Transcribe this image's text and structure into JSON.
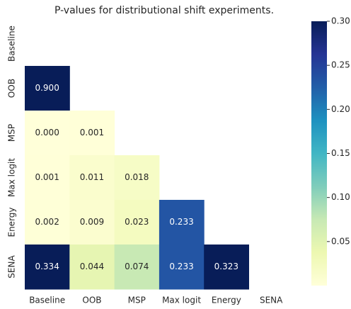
{
  "chart_data": {
    "type": "heatmap",
    "title": "P-values for distributional shift experiments.",
    "x_categories": [
      "Baseline",
      "OOB",
      "MSP",
      "Max logit",
      "Energy",
      "SENA"
    ],
    "y_categories": [
      "Baseline",
      "OOB",
      "MSP",
      "Max logit",
      "Energy",
      "SENA"
    ],
    "values": [
      [
        null,
        null,
        null,
        null,
        null,
        null
      ],
      [
        0.9,
        null,
        null,
        null,
        null,
        null
      ],
      [
        0,
        0.001,
        null,
        null,
        null,
        null
      ],
      [
        0.001,
        0.011,
        0.018,
        null,
        null,
        null
      ],
      [
        0.002,
        0.009,
        0.023,
        0.233,
        null,
        null
      ],
      [
        0.334,
        0.044,
        0.074,
        0.233,
        0.323,
        null
      ]
    ],
    "value_labels": [
      [
        null,
        null,
        null,
        null,
        null,
        null
      ],
      [
        "0.900",
        null,
        null,
        null,
        null,
        null
      ],
      [
        "0.000",
        "0.001",
        null,
        null,
        null,
        null
      ],
      [
        "0.001",
        "0.011",
        "0.018",
        null,
        null,
        null
      ],
      [
        "0.002",
        "0.009",
        "0.023",
        "0.233",
        null,
        null
      ],
      [
        "0.334",
        "0.044",
        "0.074",
        "0.233",
        "0.323",
        null
      ]
    ],
    "colormap": [
      "#ffffd9",
      "#edf8b1",
      "#c7e9b4",
      "#7fcdbb",
      "#41b6c4",
      "#1d91c0",
      "#225ea8",
      "#253494",
      "#081d58"
    ],
    "clim": [
      0,
      0.3
    ],
    "cticks": [
      0.05,
      {
        "value": 0.1,
        "label": "0.10"
      },
      0.15,
      {
        "value": 0.2,
        "label": "0.20"
      },
      0.25,
      {
        "value": 0.3,
        "label": "0.30"
      }
    ]
  }
}
